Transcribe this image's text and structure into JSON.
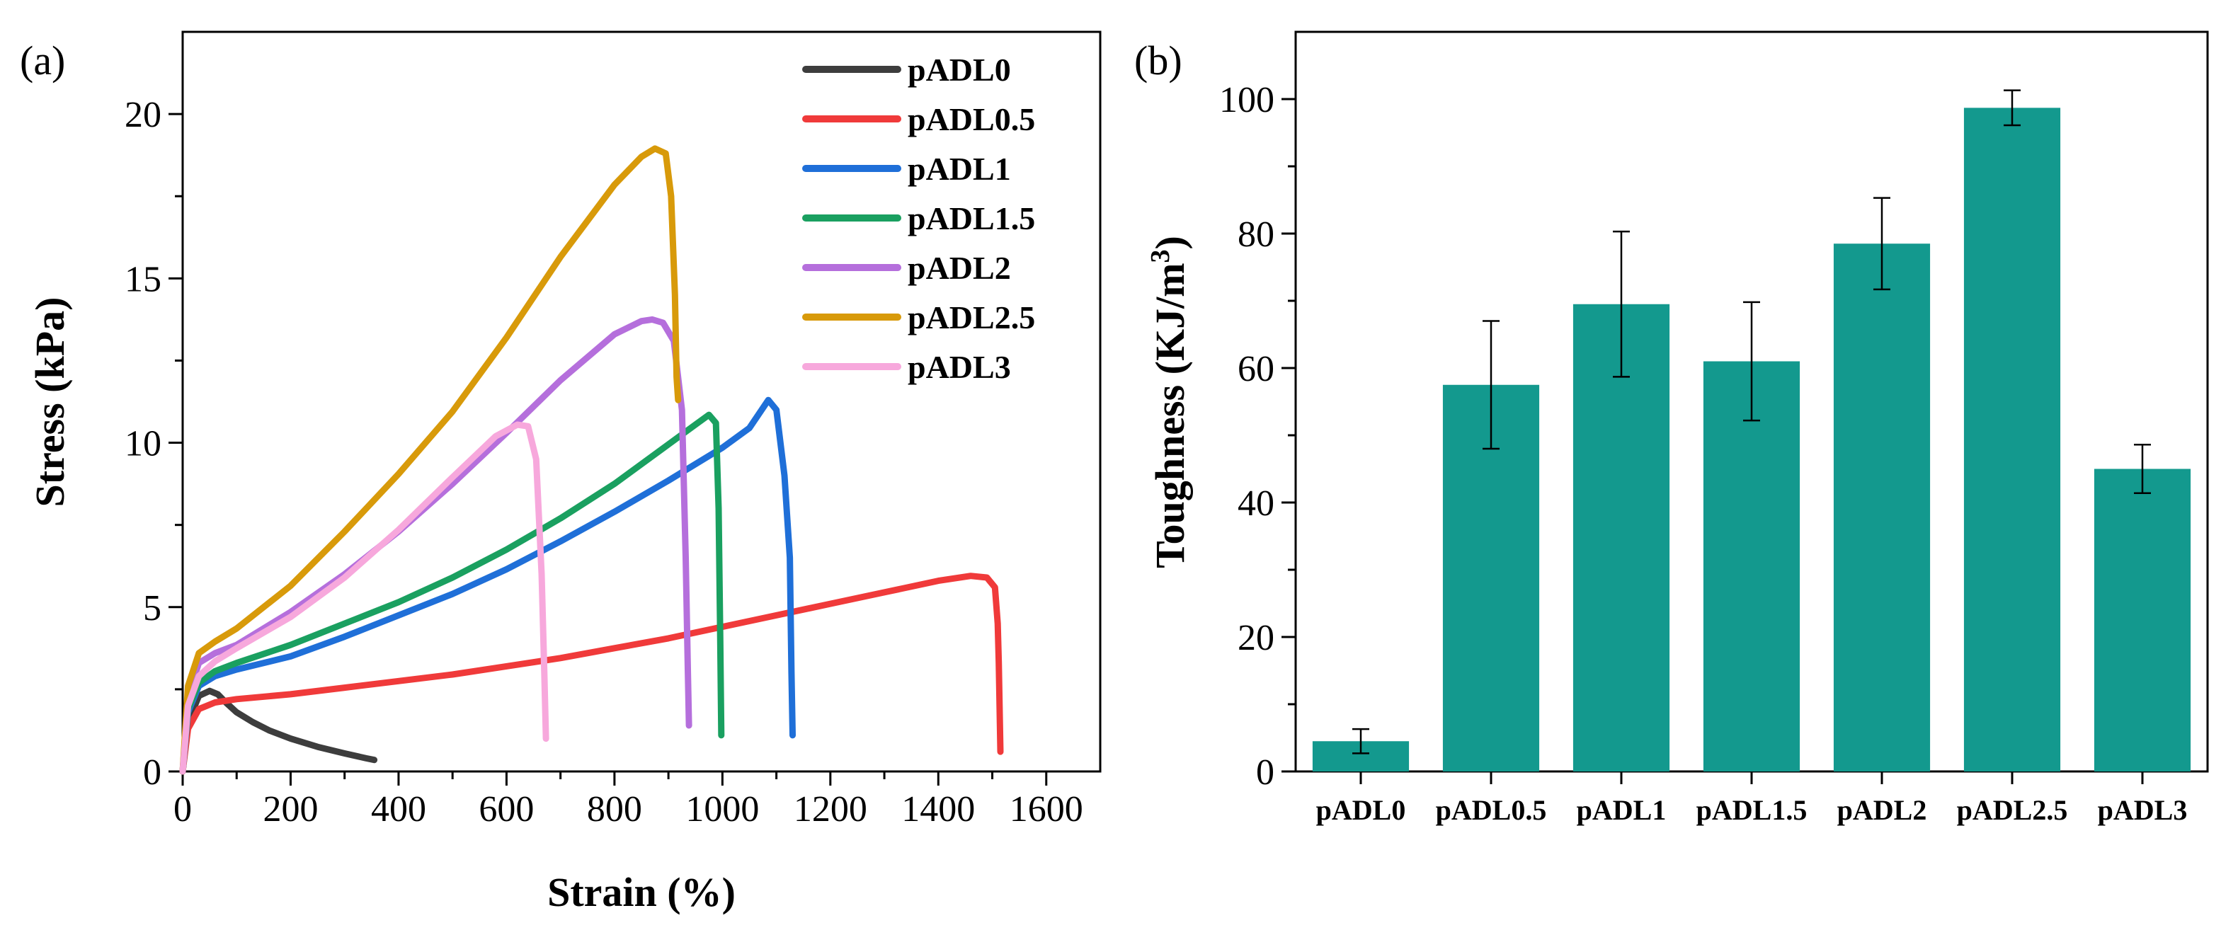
{
  "chart_data": [
    {
      "type": "line",
      "panel_label": "(a)",
      "xlabel": "Strain (%)",
      "ylabel": "Stress (kPa)",
      "xlim": [
        0,
        1700
      ],
      "ylim": [
        0,
        22.5
      ],
      "xticks": [
        0,
        200,
        400,
        600,
        800,
        1000,
        1200,
        1400,
        1600
      ],
      "yticks": [
        0,
        5,
        10,
        15,
        20
      ],
      "legend_position": "top-right",
      "series": [
        {
          "name": "pADL0",
          "color": "#3d3d3d",
          "x": [
            0,
            10,
            30,
            50,
            65,
            80,
            100,
            130,
            160,
            200,
            250,
            300,
            340,
            355
          ],
          "y": [
            0,
            1.5,
            2.3,
            2.45,
            2.35,
            2.1,
            1.8,
            1.5,
            1.25,
            1.0,
            0.75,
            0.55,
            0.4,
            0.35
          ]
        },
        {
          "name": "pADL0.5",
          "color": "#f03a3a",
          "x": [
            0,
            10,
            30,
            60,
            100,
            200,
            300,
            400,
            500,
            600,
            700,
            800,
            900,
            1000,
            1100,
            1200,
            1300,
            1400,
            1460,
            1490,
            1505,
            1510,
            1512,
            1515
          ],
          "y": [
            0,
            1.3,
            1.9,
            2.1,
            2.2,
            2.35,
            2.55,
            2.75,
            2.95,
            3.2,
            3.45,
            3.75,
            4.05,
            4.4,
            4.75,
            5.1,
            5.45,
            5.8,
            5.95,
            5.9,
            5.6,
            4.5,
            3.3,
            0.6
          ]
        },
        {
          "name": "pADL1",
          "color": "#1f6fd8",
          "x": [
            0,
            10,
            30,
            60,
            100,
            200,
            300,
            400,
            500,
            600,
            700,
            800,
            900,
            1000,
            1050,
            1085,
            1100,
            1115,
            1125,
            1128,
            1130
          ],
          "y": [
            0,
            1.8,
            2.6,
            2.9,
            3.1,
            3.5,
            4.1,
            4.75,
            5.4,
            6.15,
            7.0,
            7.9,
            8.85,
            9.85,
            10.45,
            11.3,
            11.0,
            9.0,
            6.5,
            3.0,
            1.1
          ]
        },
        {
          "name": "pADL1.5",
          "color": "#1aa060",
          "x": [
            0,
            10,
            30,
            60,
            100,
            200,
            300,
            400,
            500,
            600,
            700,
            800,
            900,
            950,
            975,
            988,
            993,
            996,
            998
          ],
          "y": [
            0,
            1.9,
            2.7,
            3.05,
            3.3,
            3.85,
            4.5,
            5.15,
            5.9,
            6.75,
            7.7,
            8.75,
            9.95,
            10.55,
            10.85,
            10.6,
            8.0,
            4.0,
            1.1
          ]
        },
        {
          "name": "pADL2",
          "color": "#b56fdc",
          "x": [
            0,
            10,
            30,
            60,
            100,
            200,
            300,
            400,
            500,
            600,
            700,
            800,
            850,
            870,
            890,
            910,
            925,
            932,
            936,
            938
          ],
          "y": [
            0,
            2.3,
            3.3,
            3.6,
            3.85,
            4.85,
            6.0,
            7.3,
            8.75,
            10.3,
            11.9,
            13.3,
            13.7,
            13.75,
            13.65,
            13.1,
            11.0,
            6.5,
            3.0,
            1.4
          ]
        },
        {
          "name": "pADL2.5",
          "color": "#d89a0a",
          "x": [
            0,
            10,
            30,
            60,
            100,
            200,
            300,
            400,
            500,
            600,
            700,
            800,
            850,
            875,
            895,
            905,
            912,
            915,
            918
          ],
          "y": [
            0,
            2.6,
            3.6,
            3.95,
            4.35,
            5.65,
            7.3,
            9.05,
            10.95,
            13.2,
            15.65,
            17.85,
            18.7,
            18.95,
            18.8,
            17.5,
            14.5,
            12.0,
            11.3
          ]
        },
        {
          "name": "pADL3",
          "color": "#f7a8dc",
          "x": [
            0,
            10,
            30,
            60,
            100,
            200,
            300,
            400,
            500,
            580,
            620,
            640,
            655,
            665,
            670,
            673
          ],
          "y": [
            0,
            2.0,
            2.9,
            3.35,
            3.75,
            4.7,
            5.9,
            7.35,
            8.95,
            10.2,
            10.55,
            10.5,
            9.5,
            6.0,
            3.0,
            1.0
          ]
        }
      ]
    },
    {
      "type": "bar",
      "panel_label": "(b)",
      "xlabel": "",
      "ylabel": "Toughness (KJ/m",
      "ylabel_sup": "3",
      "ylabel_close": ")",
      "categories": [
        "pADL0",
        "pADL0.5",
        "pADL1",
        "pADL1.5",
        "pADL2",
        "pADL2.5",
        "pADL3"
      ],
      "values": [
        4.5,
        57.5,
        69.5,
        61.0,
        78.5,
        98.7,
        45.0
      ],
      "errors": [
        1.8,
        9.5,
        10.8,
        8.8,
        6.8,
        2.6,
        3.6
      ],
      "ylim": [
        0,
        110
      ],
      "yticks": [
        0,
        20,
        40,
        60,
        80,
        100
      ],
      "bar_color": "#13998e"
    }
  ]
}
